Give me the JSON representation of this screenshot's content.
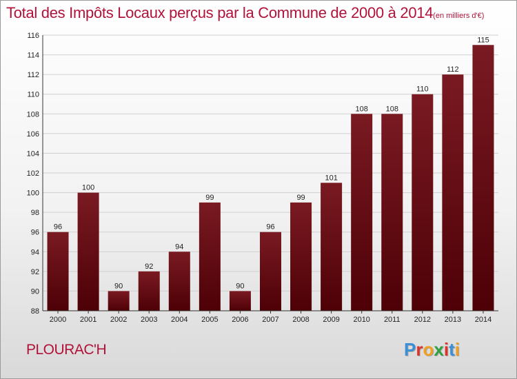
{
  "chart_data": {
    "type": "bar",
    "title": "Total des Impôts Locaux perçus par la Commune de 2000 à 2014",
    "unit_label": "(en milliers d'€)",
    "categories": [
      "2000",
      "2001",
      "2002",
      "2003",
      "2004",
      "2005",
      "2006",
      "2007",
      "2008",
      "2009",
      "2010",
      "2011",
      "2012",
      "2013",
      "2014"
    ],
    "values": [
      96,
      100,
      90,
      92,
      94,
      99,
      90,
      96,
      99,
      101,
      108,
      108,
      110,
      112,
      115
    ],
    "value_labels": [
      "96",
      "100",
      "90",
      "92",
      "94",
      "99",
      "90",
      "96",
      "99",
      "101",
      "108",
      "108",
      "110",
      "112",
      "115"
    ],
    "yticks": [
      "88",
      "90",
      "92",
      "94",
      "96",
      "98",
      "100",
      "102",
      "104",
      "106",
      "108",
      "110",
      "112",
      "114",
      "116"
    ],
    "ylim": [
      88,
      116
    ],
    "xlabel": "",
    "ylabel": "",
    "bar_color": "#7a1a22",
    "bar_color_dark": "#4d0006"
  },
  "commune": "PLOURAC'H",
  "logo": {
    "letters": [
      "P",
      "r",
      "o",
      "x",
      "i",
      "t",
      "i"
    ],
    "colors": [
      "#3a8fd6",
      "#e0302c",
      "#f0a020",
      "#30a040",
      "#e0302c",
      "#3a8fd6",
      "#f0a020"
    ]
  }
}
